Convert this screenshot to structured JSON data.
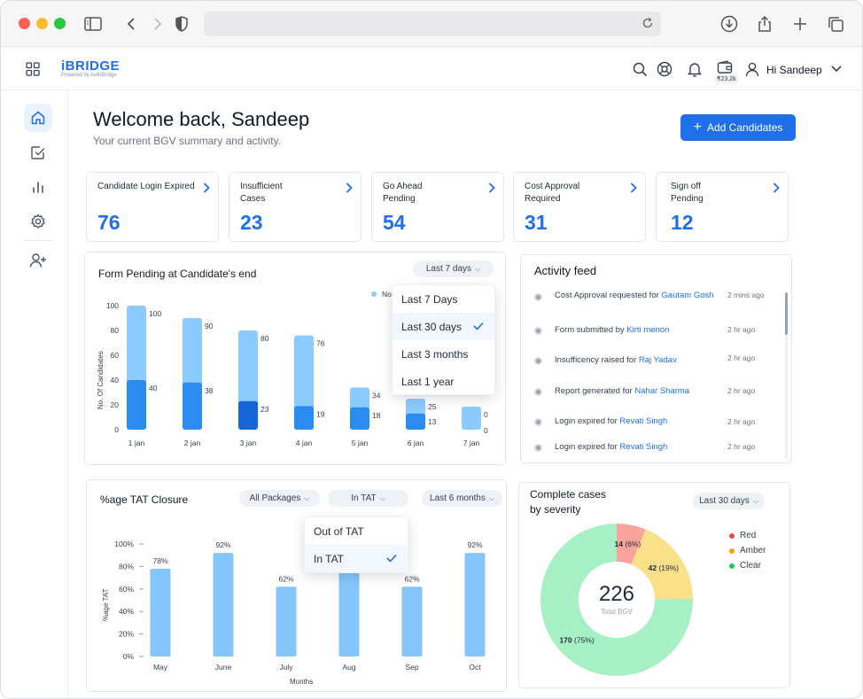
{
  "header": {
    "logo_name": "iBRIDGE",
    "logo_tagline": "Powered by AuthBridge",
    "wallet_amount": "₹23.2k",
    "greeting": "Hi Sandeep"
  },
  "main": {
    "welcome": "Welcome back, Sandeep",
    "subtitle": "Your current BGV summary and activity.",
    "add_button": "Add Candidates"
  },
  "stats": [
    {
      "label": "Candidate Login Expired",
      "value": "76"
    },
    {
      "label": "Insufficient Cases",
      "value": "23"
    },
    {
      "label": "Go Ahead Pending",
      "value": "54"
    },
    {
      "label": "Cost Approval Required",
      "value": "31"
    },
    {
      "label": "Sign off Pending",
      "value": "12"
    }
  ],
  "form_pending": {
    "title": "Form Pending at Candidate's end",
    "filter": "Last 7 days",
    "legend_partial": "No",
    "dropdown": [
      {
        "label": "Last 7 Days",
        "selected": false
      },
      {
        "label": "Last 30 days",
        "selected": true
      },
      {
        "label": "Last 3 months",
        "selected": false
      },
      {
        "label": "Last 1 year",
        "selected": false
      }
    ]
  },
  "activity": {
    "title": "Activity feed",
    "items": [
      {
        "text": "Cost Approval requested for",
        "who": "Gautam Gosh",
        "time": "2 mins ago"
      },
      {
        "text": "Form submitted by",
        "who": "Kirti menon",
        "time": "2 hr ago"
      },
      {
        "text": "Insufficency raised for",
        "who": "Raj Yadav",
        "time": "2 hr ago"
      },
      {
        "text": "Report generated for",
        "who": "Nahar Sharma",
        "time": "2 hr ago"
      },
      {
        "text": "Login expired for",
        "who": "Revati  Singh",
        "time": "2 hr ago"
      },
      {
        "text": "Login expired for",
        "who": "Revati  Singh",
        "time": "2 hr ago"
      }
    ]
  },
  "tat": {
    "title": "%age TAT Closure",
    "filter_packages": "All Packages",
    "filter_tat": "In TAT",
    "filter_period": "Last 6 months",
    "dropdown": [
      {
        "label": "Out of TAT",
        "selected": false
      },
      {
        "label": "In TAT",
        "selected": true
      }
    ]
  },
  "severity": {
    "title_line1": "Complete cases",
    "title_line2": "by severity",
    "filter": "Last 30 days",
    "total": "226",
    "total_label": "Total BGV",
    "legend": [
      {
        "label": "Red",
        "color": "#ef4444"
      },
      {
        "label": "Amber",
        "color": "#f59e0b"
      },
      {
        "label": "Clear",
        "color": "#22c55e"
      }
    ]
  },
  "chart_data": [
    {
      "type": "bar",
      "title": "Form Pending at Candidate's end",
      "ylabel": "No. Of Candidates",
      "xlabel": "",
      "ylim": [
        0,
        100
      ],
      "yticks": [
        0,
        20,
        40,
        60,
        80,
        100
      ],
      "categories": [
        "1 jan",
        "2 jan",
        "3 jan",
        "4 jan",
        "5 jan",
        "6 jan",
        "7 jan"
      ],
      "series": [
        {
          "values": [
            100,
            90,
            80,
            76,
            34,
            25,
            0
          ],
          "color": "#8ccbff"
        },
        {
          "values": [
            40,
            38,
            23,
            19,
            18,
            13,
            0
          ],
          "color": "#2b8cf0"
        }
      ],
      "highlight_index": 2,
      "highlight_color": "#1565d8",
      "legend_placement": "top-right"
    },
    {
      "type": "bar",
      "title": "%age TAT Closure",
      "ylabel": "%age TAT",
      "xlabel": "Months",
      "ylim": [
        0,
        100
      ],
      "yticks": [
        0,
        20,
        40,
        60,
        80,
        100
      ],
      "categories": [
        "May",
        "June",
        "July",
        "Aug",
        "Sep",
        "Oct"
      ],
      "values": [
        78,
        92,
        62,
        80,
        62,
        92
      ],
      "value_labels": [
        "78%",
        "92%",
        "62%",
        "",
        "62%",
        "92%"
      ],
      "color": "#84c6fb"
    },
    {
      "type": "pie",
      "title": "Complete cases by severity",
      "total": 226,
      "slices": [
        {
          "label": "Red",
          "value": 14,
          "percent": "(6%)",
          "color": "#f8a39b"
        },
        {
          "label": "Amber",
          "value": 42,
          "percent": "(19%)",
          "color": "#fbe08a"
        },
        {
          "label": "Clear",
          "value": 170,
          "percent": "(75%)",
          "color": "#a7efc4"
        }
      ]
    }
  ]
}
